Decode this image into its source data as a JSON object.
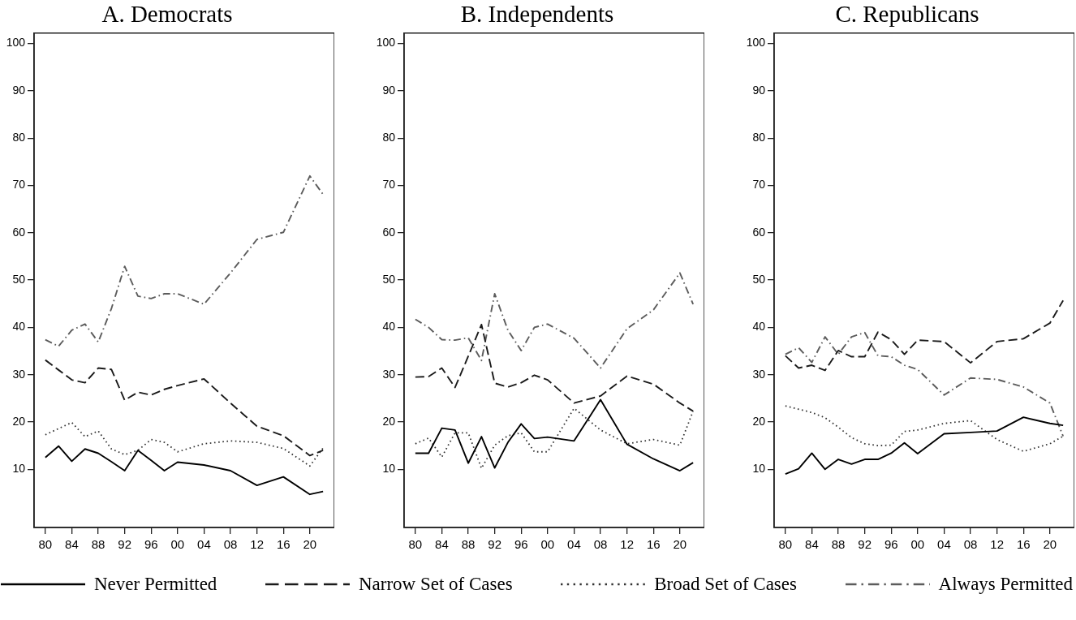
{
  "chart_data": [
    {
      "type": "line",
      "title": "A. Democrats",
      "x": [
        1980,
        1982,
        1984,
        1986,
        1988,
        1990,
        1992,
        1994,
        1996,
        1998,
        2000,
        2004,
        2008,
        2012,
        2016,
        2020,
        2022
      ],
      "xlim": [
        1978.3,
        2023.7
      ],
      "xticks": [
        {
          "value": 1980,
          "label": "80"
        },
        {
          "value": 1984,
          "label": "84"
        },
        {
          "value": 1988,
          "label": "88"
        },
        {
          "value": 1992,
          "label": "92"
        },
        {
          "value": 1996,
          "label": "96"
        },
        {
          "value": 2000,
          "label": "00"
        },
        {
          "value": 2004,
          "label": "04"
        },
        {
          "value": 2008,
          "label": "08"
        },
        {
          "value": 2012,
          "label": "12"
        },
        {
          "value": 2016,
          "label": "16"
        },
        {
          "value": 2020,
          "label": "20"
        }
      ],
      "ylim": [
        -2.3,
        102.2
      ],
      "yticks": [
        10,
        20,
        30,
        40,
        50,
        60,
        70,
        80,
        90,
        100
      ],
      "legend": "bottom",
      "series": [
        {
          "name": "Never Permitted",
          "color": "#000000",
          "line_style": "solid",
          "values": [
            12.5,
            14.9,
            11.7,
            14.3,
            13.4,
            11.6,
            9.7,
            14.0,
            11.9,
            9.7,
            11.5,
            10.9,
            9.7,
            6.6,
            8.4,
            4.7,
            5.3
          ]
        },
        {
          "name": "Narrow Set of Cases",
          "color": "#1a1a1a",
          "line_style": "dashed",
          "values": [
            33.1,
            31.0,
            28.9,
            28.3,
            31.4,
            31.1,
            24.6,
            26.3,
            25.7,
            26.9,
            27.7,
            29.1,
            24.0,
            19.1,
            17.1,
            12.9,
            14.0
          ]
        },
        {
          "name": "Broad Set of Cases",
          "color": "#333333",
          "line_style": "dotted",
          "values": [
            17.3,
            18.6,
            19.9,
            16.9,
            18.1,
            14.3,
            13.1,
            14.0,
            16.3,
            15.7,
            13.7,
            15.4,
            16.0,
            15.7,
            14.4,
            10.7,
            14.5
          ]
        },
        {
          "name": "Always Permitted",
          "color": "#5c5c5c",
          "line_style": "dashdot",
          "values": [
            37.4,
            36.0,
            39.4,
            40.7,
            36.9,
            44.0,
            52.9,
            46.6,
            46.1,
            47.1,
            47.1,
            44.9,
            51.5,
            58.6,
            60.1,
            72.0,
            68.1
          ]
        }
      ]
    },
    {
      "type": "line",
      "title": "B. Independents",
      "x": [
        1980,
        1982,
        1984,
        1986,
        1988,
        1990,
        1992,
        1994,
        1996,
        1998,
        2000,
        2004,
        2008,
        2012,
        2016,
        2020,
        2022
      ],
      "xlim": [
        1978.3,
        2023.7
      ],
      "xticks": [
        {
          "value": 1980,
          "label": "80"
        },
        {
          "value": 1984,
          "label": "84"
        },
        {
          "value": 1988,
          "label": "88"
        },
        {
          "value": 1992,
          "label": "92"
        },
        {
          "value": 1996,
          "label": "96"
        },
        {
          "value": 2000,
          "label": "00"
        },
        {
          "value": 2004,
          "label": "04"
        },
        {
          "value": 2008,
          "label": "08"
        },
        {
          "value": 2012,
          "label": "12"
        },
        {
          "value": 2016,
          "label": "16"
        },
        {
          "value": 2020,
          "label": "20"
        }
      ],
      "ylim": [
        -2.3,
        102.2
      ],
      "yticks": [
        10,
        20,
        30,
        40,
        50,
        60,
        70,
        80,
        90,
        100
      ],
      "series": [
        {
          "color": "#000000",
          "line_style": "solid",
          "values": [
            13.4,
            13.4,
            18.7,
            18.3,
            11.3,
            16.9,
            10.3,
            15.7,
            19.6,
            16.5,
            16.8,
            16.0,
            24.7,
            15.3,
            12.2,
            9.7,
            11.4
          ]
        },
        {
          "color": "#1a1a1a",
          "line_style": "dashed",
          "values": [
            29.5,
            29.6,
            31.4,
            27.3,
            33.9,
            40.6,
            28.2,
            27.4,
            28.3,
            29.9,
            28.9,
            24.0,
            25.5,
            29.7,
            28.0,
            24.0,
            22.3
          ]
        },
        {
          "color": "#333333",
          "line_style": "dotted",
          "values": [
            15.4,
            16.6,
            12.6,
            17.7,
            17.7,
            10.2,
            15.1,
            17.1,
            17.7,
            13.7,
            13.7,
            22.9,
            18.3,
            15.4,
            16.3,
            15.1,
            22.3
          ]
        },
        {
          "color": "#5c5c5c",
          "line_style": "dashdot",
          "values": [
            41.7,
            40.0,
            37.4,
            37.3,
            37.8,
            33.0,
            47.1,
            39.4,
            35.1,
            40.0,
            40.7,
            37.7,
            31.4,
            39.7,
            43.7,
            51.5,
            44.9
          ]
        }
      ]
    },
    {
      "type": "line",
      "title": "C. Republicans",
      "x": [
        1980,
        1982,
        1984,
        1986,
        1988,
        1990,
        1992,
        1994,
        1996,
        1998,
        2000,
        2004,
        2008,
        2012,
        2016,
        2020,
        2022
      ],
      "xlim": [
        1978.3,
        2023.7
      ],
      "xticks": [
        {
          "value": 1980,
          "label": "80"
        },
        {
          "value": 1984,
          "label": "84"
        },
        {
          "value": 1988,
          "label": "88"
        },
        {
          "value": 1992,
          "label": "92"
        },
        {
          "value": 1996,
          "label": "96"
        },
        {
          "value": 2000,
          "label": "00"
        },
        {
          "value": 2004,
          "label": "04"
        },
        {
          "value": 2008,
          "label": "08"
        },
        {
          "value": 2012,
          "label": "12"
        },
        {
          "value": 2016,
          "label": "16"
        },
        {
          "value": 2020,
          "label": "20"
        }
      ],
      "ylim": [
        -2.3,
        102.2
      ],
      "yticks": [
        10,
        20,
        30,
        40,
        50,
        60,
        70,
        80,
        90,
        100
      ],
      "series": [
        {
          "color": "#000000",
          "line_style": "solid",
          "values": [
            9.0,
            10.1,
            13.4,
            10.0,
            12.1,
            11.1,
            12.1,
            12.1,
            13.4,
            15.6,
            13.3,
            17.5,
            17.8,
            18.1,
            21.0,
            19.7,
            19.3
          ]
        },
        {
          "color": "#1a1a1a",
          "line_style": "dashed",
          "values": [
            34.0,
            31.4,
            32.0,
            30.9,
            35.1,
            33.8,
            33.8,
            39.0,
            37.4,
            34.3,
            37.3,
            37.0,
            32.5,
            37.0,
            37.6,
            40.9,
            45.7
          ]
        },
        {
          "color": "#333333",
          "line_style": "dotted",
          "values": [
            23.4,
            22.7,
            22.0,
            20.9,
            18.9,
            16.7,
            15.4,
            15.0,
            15.1,
            18.0,
            18.3,
            19.7,
            20.3,
            16.3,
            13.8,
            15.4,
            17.0
          ]
        },
        {
          "color": "#5c5c5c",
          "line_style": "dashdot",
          "values": [
            34.3,
            35.7,
            32.6,
            38.0,
            34.3,
            38.0,
            38.9,
            34.0,
            33.8,
            32.0,
            31.1,
            25.7,
            29.3,
            29.0,
            27.4,
            24.0,
            17.0
          ]
        }
      ]
    }
  ]
}
